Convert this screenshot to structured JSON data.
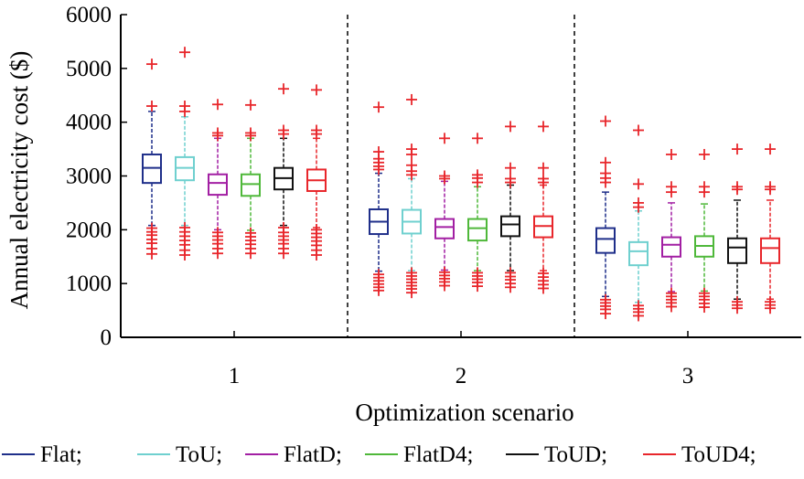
{
  "chart_data": {
    "type": "boxplot",
    "title": "",
    "xlabel": "Optimization scenario",
    "ylabel": "Annual electricity cost ($)",
    "ylim": [
      0,
      6000
    ],
    "yticks": [
      0,
      1000,
      2000,
      3000,
      4000,
      5000,
      6000
    ],
    "categories": [
      "1",
      "2",
      "3"
    ],
    "legend": {
      "placement": "bottom",
      "separator": ";"
    },
    "series": [
      {
        "name": "Flat",
        "color": "#1f2f8a",
        "boxes": [
          {
            "q1": 2870,
            "median": 3150,
            "q3": 3400,
            "whisker_low": 2080,
            "whisker_high": 4200,
            "outliers": [
              1550,
              1650,
              1750,
              1820,
              1900,
              1960,
              2030,
              4300,
              5080
            ]
          },
          {
            "q1": 1920,
            "median": 2150,
            "q3": 2380,
            "whisker_low": 1230,
            "whisker_high": 3050,
            "outliers": [
              870,
              930,
              990,
              1050,
              1110,
              1170,
              3120,
              3180,
              3250,
              3320,
              3450,
              4280
            ]
          },
          {
            "q1": 1570,
            "median": 1830,
            "q3": 2030,
            "whisker_low": 760,
            "whisker_high": 2700,
            "outliers": [
              440,
              520,
              580,
              640,
              700,
              2880,
              2960,
              3050,
              3250,
              4020
            ]
          }
        ]
      },
      {
        "name": "ToU",
        "color": "#6fd0cf",
        "boxes": [
          {
            "q1": 2920,
            "median": 3150,
            "q3": 3350,
            "whisker_low": 2080,
            "whisker_high": 4100,
            "outliers": [
              1530,
              1620,
              1720,
              1800,
              1880,
              1960,
              2040,
              4200,
              4300,
              5300
            ]
          },
          {
            "q1": 1930,
            "median": 2150,
            "q3": 2370,
            "whisker_low": 1240,
            "whisker_high": 2950,
            "outliers": [
              830,
              900,
              960,
              1020,
              1080,
              1140,
              1200,
              3020,
              3090,
              3200,
              3400,
              3500,
              4420
            ]
          },
          {
            "q1": 1340,
            "median": 1600,
            "q3": 1770,
            "whisker_low": 650,
            "whisker_high": 2350,
            "outliers": [
              400,
              470,
              530,
              590,
              2420,
              2500,
              2850,
              3850
            ]
          }
        ]
      },
      {
        "name": "FlatD",
        "color": "#a21fa3",
        "boxes": [
          {
            "q1": 2650,
            "median": 2870,
            "q3": 3030,
            "whisker_low": 2000,
            "whisker_high": 3700,
            "outliers": [
              1560,
              1650,
              1740,
              1810,
              1880,
              1950,
              3750,
              3800,
              4330
            ]
          },
          {
            "q1": 1840,
            "median": 2050,
            "q3": 2200,
            "whisker_low": 1250,
            "whisker_high": 2900,
            "outliers": [
              960,
              1030,
              1090,
              1150,
              1210,
              2950,
              3000,
              3700
            ]
          },
          {
            "q1": 1500,
            "median": 1720,
            "q3": 1860,
            "whisker_low": 850,
            "whisker_high": 2500,
            "outliers": [
              570,
              640,
              700,
              760,
              820,
              2700,
              2800,
              3400
            ]
          }
        ]
      },
      {
        "name": "FlatD4",
        "color": "#4fb83a",
        "boxes": [
          {
            "q1": 2630,
            "median": 2850,
            "q3": 3030,
            "whisker_low": 1990,
            "whisker_high": 3700,
            "outliers": [
              1560,
              1650,
              1730,
              1800,
              1870,
              1940,
              3750,
              3800,
              4320
            ]
          },
          {
            "q1": 1800,
            "median": 2030,
            "q3": 2200,
            "whisker_low": 1240,
            "whisker_high": 2800,
            "outliers": [
              950,
              1020,
              1080,
              1140,
              1200,
              2880,
              2960,
              3020,
              3700
            ]
          },
          {
            "q1": 1500,
            "median": 1700,
            "q3": 1880,
            "whisker_low": 860,
            "whisker_high": 2480,
            "outliers": [
              560,
              630,
              700,
              760,
              820,
              2700,
              2800,
              3400
            ]
          }
        ]
      },
      {
        "name": "ToUD",
        "color": "#111111",
        "boxes": [
          {
            "q1": 2750,
            "median": 2960,
            "q3": 3150,
            "whisker_low": 2080,
            "whisker_high": 3700,
            "outliers": [
              1560,
              1650,
              1740,
              1810,
              1880,
              1950,
              2040,
              3780,
              3850,
              4620
            ]
          },
          {
            "q1": 1880,
            "median": 2100,
            "q3": 2250,
            "whisker_low": 1240,
            "whisker_high": 2830,
            "outliers": [
              930,
              1000,
              1070,
              1130,
              1200,
              2880,
              2950,
              3150,
              3920
            ]
          },
          {
            "q1": 1380,
            "median": 1670,
            "q3": 1840,
            "whisker_low": 710,
            "whisker_high": 2550,
            "outliers": [
              540,
              600,
              660,
              2750,
              2800,
              3500
            ]
          }
        ]
      },
      {
        "name": "ToUD4",
        "color": "#e8262b",
        "boxes": [
          {
            "q1": 2720,
            "median": 2920,
            "q3": 3120,
            "whisker_low": 2040,
            "whisker_high": 3700,
            "outliers": [
              1530,
              1620,
              1710,
              1790,
              1860,
              1930,
              2000,
              3780,
              3850,
              4600
            ]
          },
          {
            "q1": 1860,
            "median": 2070,
            "q3": 2250,
            "whisker_low": 1240,
            "whisker_high": 2830,
            "outliers": [
              910,
              980,
              1050,
              1120,
              1190,
              2880,
              2950,
              3150,
              3920
            ]
          },
          {
            "q1": 1380,
            "median": 1660,
            "q3": 1840,
            "whisker_low": 710,
            "whisker_high": 2550,
            "outliers": [
              540,
              600,
              660,
              2750,
              2800,
              3500
            ]
          }
        ]
      }
    ]
  }
}
